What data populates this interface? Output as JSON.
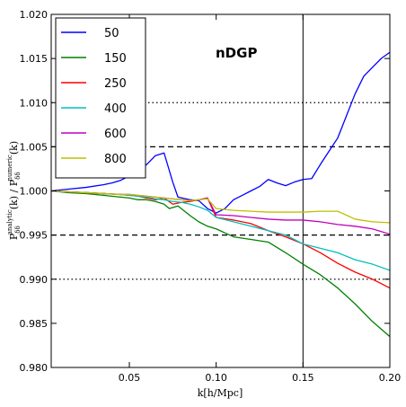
{
  "chart_data": {
    "type": "line",
    "annotation": "nDGP",
    "xlabel": "k[h/Mpc]",
    "ylabel": "P_δδ^analytic(k)/P_δδ^numeric(k)",
    "ylabel_parts": {
      "p1": "P",
      "sub1": "δδ",
      "sup1": "analytic",
      "mid": "(k) / P",
      "sub2": "δδ",
      "sup2": "numeric",
      "end": "(k)"
    },
    "xlim": [
      0.005,
      0.2
    ],
    "ylim": [
      0.98,
      1.02
    ],
    "xticks": [
      0.05,
      0.1,
      0.15,
      0.2
    ],
    "xtick_labels": [
      "0.05",
      "0.10",
      "0.15",
      "0.20"
    ],
    "yticks": [
      0.98,
      0.985,
      0.99,
      0.995,
      1.0,
      1.005,
      1.01,
      1.015,
      1.02
    ],
    "ytick_labels": [
      "0.980",
      "0.985",
      "0.990",
      "0.995",
      "1.000",
      "1.005",
      "1.010",
      "1.015",
      "1.020"
    ],
    "legend_position": "top-left",
    "hlines": [
      {
        "y": 1.005,
        "style": "dashed"
      },
      {
        "y": 0.995,
        "style": "dashed"
      },
      {
        "y": 1.01,
        "style": "dotted"
      },
      {
        "y": 0.99,
        "style": "dotted"
      }
    ],
    "vlines": [
      {
        "x": 0.15,
        "style": "solid"
      }
    ],
    "series": [
      {
        "name": "50",
        "color": "#0000ff",
        "x": [
          0.005,
          0.015,
          0.025,
          0.035,
          0.04,
          0.045,
          0.05,
          0.055,
          0.06,
          0.065,
          0.07,
          0.075,
          0.078,
          0.085,
          0.09,
          0.095,
          0.1,
          0.105,
          0.11,
          0.115,
          0.12,
          0.125,
          0.13,
          0.135,
          0.14,
          0.145,
          0.15,
          0.155,
          0.16,
          0.165,
          0.17,
          0.175,
          0.18,
          0.185,
          0.19,
          0.195,
          0.2
        ],
        "y": [
          1.0,
          1.0002,
          1.0004,
          1.0007,
          1.0009,
          1.0012,
          1.0017,
          1.0022,
          1.003,
          1.004,
          1.0043,
          1.001,
          0.9993,
          0.999,
          0.9989,
          0.998,
          0.9975,
          0.998,
          0.999,
          0.9995,
          1.0,
          1.0005,
          1.0013,
          1.0009,
          1.0006,
          1.001,
          1.0013,
          1.0014,
          1.003,
          1.0045,
          1.006,
          1.0085,
          1.011,
          1.013,
          1.014,
          1.015,
          1.0157
        ]
      },
      {
        "name": "150",
        "color": "#008000",
        "x": [
          0.005,
          0.015,
          0.025,
          0.035,
          0.045,
          0.05,
          0.055,
          0.06,
          0.065,
          0.07,
          0.073,
          0.078,
          0.085,
          0.09,
          0.095,
          0.1,
          0.11,
          0.12,
          0.13,
          0.14,
          0.15,
          0.16,
          0.17,
          0.18,
          0.19,
          0.2
        ],
        "y": [
          1.0,
          0.9998,
          0.9997,
          0.9995,
          0.9993,
          0.9992,
          0.999,
          0.999,
          0.9988,
          0.9985,
          0.998,
          0.9983,
          0.9972,
          0.9965,
          0.996,
          0.9957,
          0.9948,
          0.9945,
          0.9942,
          0.993,
          0.9917,
          0.9905,
          0.989,
          0.9872,
          0.9852,
          0.9835
        ]
      },
      {
        "name": "250",
        "color": "#ff0000",
        "x": [
          0.005,
          0.015,
          0.025,
          0.035,
          0.045,
          0.05,
          0.055,
          0.06,
          0.065,
          0.07,
          0.075,
          0.08,
          0.085,
          0.09,
          0.095,
          0.1,
          0.11,
          0.12,
          0.13,
          0.14,
          0.15,
          0.16,
          0.17,
          0.18,
          0.19,
          0.2
        ],
        "y": [
          1.0,
          0.9999,
          0.9998,
          0.9997,
          0.9996,
          0.9995,
          0.9994,
          0.9992,
          0.999,
          0.9992,
          0.9985,
          0.9987,
          0.9988,
          0.999,
          0.9992,
          0.997,
          0.9967,
          0.9963,
          0.9955,
          0.9948,
          0.994,
          0.993,
          0.9918,
          0.9908,
          0.99,
          0.989
        ]
      },
      {
        "name": "400",
        "color": "#00bfbf",
        "x": [
          0.005,
          0.015,
          0.025,
          0.035,
          0.045,
          0.05,
          0.055,
          0.06,
          0.065,
          0.07,
          0.075,
          0.08,
          0.085,
          0.09,
          0.095,
          0.1,
          0.11,
          0.12,
          0.13,
          0.14,
          0.15,
          0.16,
          0.17,
          0.18,
          0.19,
          0.2
        ],
        "y": [
          1.0,
          0.9999,
          0.9998,
          0.9997,
          0.9996,
          0.9995,
          0.9994,
          0.9993,
          0.9991,
          0.999,
          0.9988,
          0.9987,
          0.9985,
          0.9982,
          0.9978,
          0.997,
          0.9965,
          0.996,
          0.9955,
          0.995,
          0.994,
          0.9935,
          0.993,
          0.9922,
          0.9917,
          0.991
        ]
      },
      {
        "name": "600",
        "color": "#bf00bf",
        "x": [
          0.005,
          0.015,
          0.025,
          0.035,
          0.045,
          0.05,
          0.055,
          0.06,
          0.065,
          0.07,
          0.075,
          0.08,
          0.085,
          0.09,
          0.095,
          0.1,
          0.11,
          0.12,
          0.13,
          0.14,
          0.15,
          0.16,
          0.17,
          0.18,
          0.19,
          0.2
        ],
        "y": [
          1.0,
          0.9999,
          0.9998,
          0.9997,
          0.9996,
          0.9996,
          0.9995,
          0.9994,
          0.9993,
          0.9992,
          0.9991,
          0.999,
          0.9989,
          0.999,
          0.9992,
          0.9973,
          0.9972,
          0.997,
          0.9968,
          0.9967,
          0.9967,
          0.9965,
          0.9962,
          0.996,
          0.9957,
          0.9951
        ]
      },
      {
        "name": "800",
        "color": "#bfbf00",
        "x": [
          0.005,
          0.015,
          0.025,
          0.035,
          0.045,
          0.05,
          0.055,
          0.06,
          0.065,
          0.07,
          0.075,
          0.08,
          0.085,
          0.09,
          0.095,
          0.1,
          0.11,
          0.12,
          0.13,
          0.14,
          0.15,
          0.16,
          0.17,
          0.18,
          0.19,
          0.2
        ],
        "y": [
          1.0,
          0.9999,
          0.9998,
          0.9997,
          0.9996,
          0.9996,
          0.9995,
          0.9994,
          0.9993,
          0.9992,
          0.9991,
          0.999,
          0.9989,
          0.999,
          0.9991,
          0.998,
          0.9978,
          0.9977,
          0.9976,
          0.9976,
          0.9976,
          0.9977,
          0.9977,
          0.9968,
          0.9965,
          0.9964
        ]
      }
    ]
  }
}
